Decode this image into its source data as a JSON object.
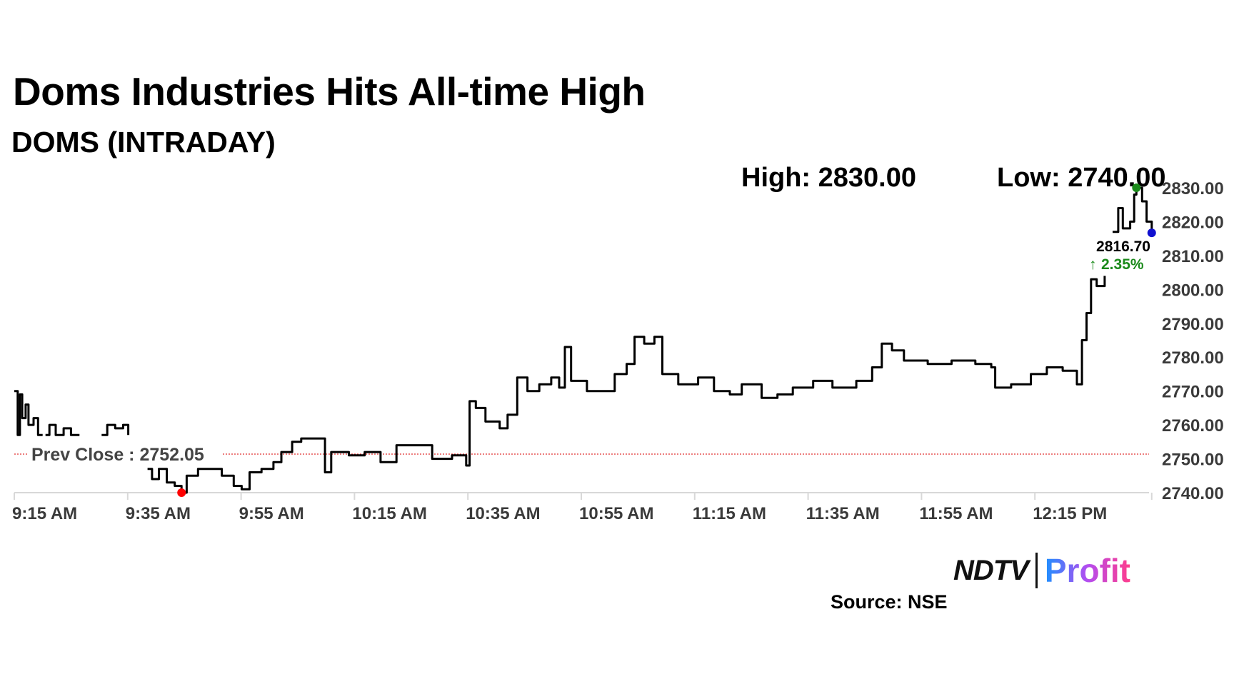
{
  "chart_data": {
    "type": "line",
    "title": "Doms Industries Hits All-time High",
    "subtitle": "DOMS (INTRADAY)",
    "high_label": "High: 2830.00",
    "low_label": "Low: 2740.00",
    "xlabel": "",
    "ylabel": "",
    "ylim": [
      2740,
      2830
    ],
    "yticks": [
      "2830.00",
      "2820.00",
      "2810.00",
      "2800.00",
      "2790.00",
      "2780.00",
      "2770.00",
      "2760.00",
      "2750.00",
      "2740.00"
    ],
    "ytick_values": [
      2830,
      2820,
      2810,
      2800,
      2790,
      2780,
      2770,
      2760,
      2750,
      2740
    ],
    "xticks": [
      "9:15 AM",
      "9:35 AM",
      "9:55 AM",
      "10:15 AM",
      "10:35 AM",
      "10:55 AM",
      "11:15 AM",
      "11:35 AM",
      "11:55 AM",
      "12:15 PM"
    ],
    "xtick_minutes": [
      0,
      20,
      40,
      60,
      80,
      100,
      120,
      140,
      160,
      180
    ],
    "xlim_minutes": [
      0,
      200.6
    ],
    "x_unit": "minutes since 9:15 AM",
    "prev_close": 2752.05,
    "prev_close_label": "Prev Close : 2752.05",
    "last_price_label": "2816.70",
    "change_label": "2.35%",
    "change_arrow": "↑",
    "high_point": {
      "t": 197.9,
      "price": 2830
    },
    "low_point": {
      "t": 29.5,
      "price": 2740
    },
    "last_point": {
      "t": 200.6,
      "price": 2816.7
    },
    "colors": {
      "line": "#000000",
      "prev_close": "#e03030",
      "high_dot": "#1a8a1a",
      "low_dot": "#ff0000",
      "last_dot": "#1010d0",
      "change": "#1a8a1a",
      "axis_text": "#3a3a3a"
    },
    "series": [
      {
        "name": "DOMS",
        "points": [
          [
            0,
            2770
          ],
          [
            0.6,
            2757
          ],
          [
            1,
            2769
          ],
          [
            1.4,
            2762
          ],
          [
            2,
            2766
          ],
          [
            2.5,
            2760
          ],
          [
            3.4,
            2762
          ],
          [
            4.2,
            2757
          ],
          [
            5,
            2757
          ],
          null,
          [
            5.5,
            2757
          ],
          [
            6.2,
            2760
          ],
          [
            7.3,
            2757
          ],
          [
            8.7,
            2759
          ],
          [
            10,
            2757
          ],
          [
            11.5,
            2757
          ],
          null,
          [
            15.4,
            2757
          ],
          [
            16.4,
            2760
          ],
          [
            17.8,
            2759
          ],
          [
            19.2,
            2760
          ],
          [
            20.1,
            2757
          ],
          null,
          [
            23.5,
            2747
          ],
          [
            24.3,
            2744
          ],
          [
            25.5,
            2747
          ],
          [
            26.9,
            2743
          ],
          [
            28.3,
            2742
          ],
          [
            29.5,
            2740
          ],
          [
            30.4,
            2745
          ],
          [
            32.4,
            2747
          ],
          [
            35.2,
            2747
          ],
          [
            36.6,
            2745
          ],
          [
            38.7,
            2742
          ],
          [
            40.1,
            2741
          ],
          [
            41.5,
            2746
          ],
          [
            43.6,
            2747
          ],
          [
            45.7,
            2749
          ],
          [
            47.1,
            2752
          ],
          [
            49,
            2755
          ],
          [
            50.6,
            2756
          ],
          [
            54.1,
            2756
          ],
          [
            54.8,
            2746
          ],
          [
            55.9,
            2752
          ],
          [
            59,
            2751
          ],
          [
            61.8,
            2752
          ],
          [
            64.6,
            2749
          ],
          [
            67.4,
            2754
          ],
          [
            71.6,
            2754
          ],
          [
            73.7,
            2750
          ],
          [
            77.2,
            2751
          ],
          [
            79.7,
            2748
          ],
          [
            80.3,
            2767
          ],
          [
            81.4,
            2765
          ],
          [
            83.1,
            2761
          ],
          [
            85.6,
            2759
          ],
          [
            87,
            2763
          ],
          [
            88.7,
            2774
          ],
          [
            90.5,
            2770
          ],
          [
            92.6,
            2772
          ],
          [
            94.7,
            2774
          ],
          [
            96.1,
            2771
          ],
          [
            97.1,
            2783
          ],
          [
            98.2,
            2773
          ],
          [
            101,
            2770
          ],
          [
            104.5,
            2770
          ],
          [
            105.9,
            2775
          ],
          [
            108,
            2778
          ],
          [
            109.4,
            2786
          ],
          [
            111.1,
            2784
          ],
          [
            112.9,
            2786
          ],
          [
            114.3,
            2775
          ],
          [
            117.1,
            2772
          ],
          [
            120.6,
            2774
          ],
          [
            123.4,
            2770
          ],
          [
            126.2,
            2769
          ],
          [
            128.3,
            2772
          ],
          [
            131.8,
            2768
          ],
          [
            134.6,
            2769
          ],
          [
            137.3,
            2771
          ],
          [
            140.9,
            2773
          ],
          [
            144.3,
            2771
          ],
          [
            148.5,
            2773
          ],
          [
            151.3,
            2777
          ],
          [
            153,
            2784
          ],
          [
            154.8,
            2782
          ],
          [
            156.9,
            2779
          ],
          [
            161.1,
            2778
          ],
          [
            165.3,
            2779
          ],
          [
            169.5,
            2778
          ],
          [
            172.3,
            2777
          ],
          [
            173,
            2771
          ],
          [
            175.8,
            2772
          ],
          [
            177.9,
            2772
          ],
          [
            179.3,
            2775
          ],
          [
            182.1,
            2777
          ],
          [
            184.9,
            2776
          ],
          [
            187.4,
            2772
          ],
          [
            188.3,
            2785
          ],
          [
            189.1,
            2793
          ],
          [
            189.9,
            2803
          ],
          [
            190.9,
            2801
          ],
          [
            192.3,
            2804
          ],
          null,
          [
            193.7,
            2817
          ],
          [
            194.7,
            2824
          ],
          [
            195.5,
            2818
          ],
          [
            196.8,
            2820
          ],
          [
            197.5,
            2828
          ],
          [
            197.9,
            2830
          ],
          [
            198.9,
            2826
          ],
          [
            199.7,
            2820
          ],
          [
            200.6,
            2816.7
          ]
        ]
      }
    ]
  },
  "logo": {
    "left": "NDTV",
    "right": "Profit"
  },
  "source": "Source: NSE"
}
